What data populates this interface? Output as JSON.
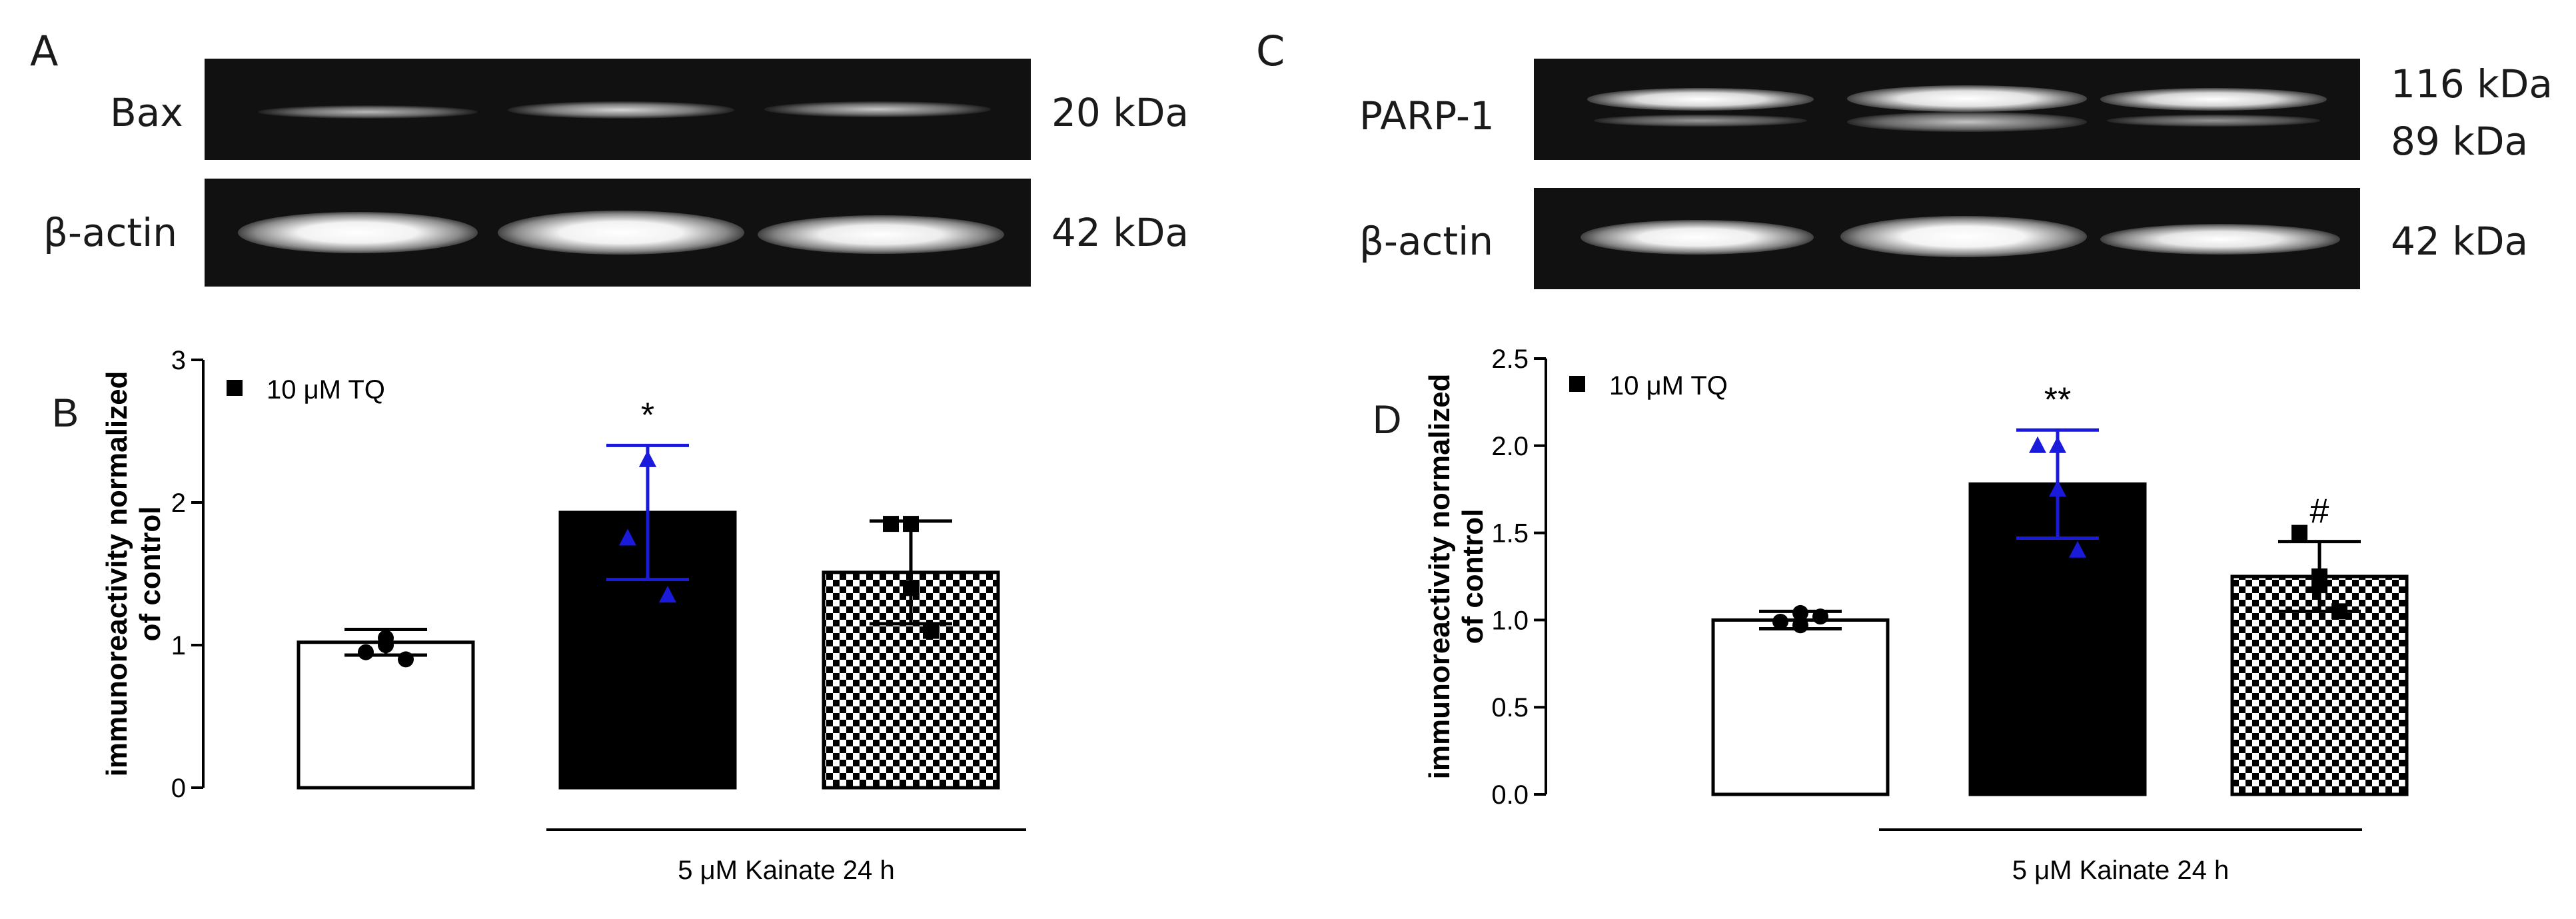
{
  "panels": {
    "A": {
      "label": "A",
      "rows": [
        {
          "name": "Bax",
          "kda": [
            "20 kDa"
          ]
        },
        {
          "name": "β-actin",
          "kda": [
            "42 kDa"
          ]
        }
      ]
    },
    "C": {
      "label": "C",
      "rows": [
        {
          "name": "PARP-1",
          "kda": [
            "116 kDa",
            "89 kDa"
          ]
        },
        {
          "name": "β-actin",
          "kda": [
            "42 kDa"
          ]
        }
      ]
    }
  },
  "chart_data": [
    {
      "panel": "B",
      "type": "bar",
      "ylabel": "immunoreactivity normalized\nof control",
      "ylim": [
        0,
        3
      ],
      "yticks": [
        "0",
        "1",
        "2",
        "3"
      ],
      "legend": "10 μM TQ",
      "xlabel": "5 μM Kainate 24 h",
      "categories": [
        "",
        "",
        ""
      ],
      "fills": [
        "white",
        "black",
        "checker"
      ],
      "values": [
        1.02,
        1.93,
        1.51
      ],
      "errors": [
        0.09,
        0.47,
        0.36
      ],
      "error_colors": [
        "#000000",
        "#1a1adb",
        "#000000"
      ],
      "points": [
        [
          0.95,
          1.05,
          0.9,
          1.0
        ],
        [
          1.75,
          2.3,
          1.35,
          2.3
        ],
        [
          1.85,
          1.4,
          1.1,
          1.85
        ]
      ],
      "point_shapes": [
        "circle",
        "triangle",
        "square"
      ],
      "point_colors": [
        "#000000",
        "#1a1adb",
        "#000000"
      ],
      "annotations": [
        "",
        "*",
        ""
      ]
    },
    {
      "panel": "D",
      "type": "bar",
      "ylabel": "immunoreactivity normalized\nof control",
      "ylim": [
        0,
        2.5
      ],
      "yticks": [
        "0.0",
        "0.5",
        "1.0",
        "1.5",
        "2.0",
        "2.5"
      ],
      "legend": "10 μM TQ",
      "xlabel": "5 μM Kainate 24 h",
      "categories": [
        "",
        "",
        ""
      ],
      "fills": [
        "white",
        "black",
        "checker"
      ],
      "values": [
        1.0,
        1.78,
        1.25
      ],
      "errors": [
        0.05,
        0.31,
        0.2
      ],
      "error_colors": [
        "#000000",
        "#1a1adb",
        "#000000"
      ],
      "points": [
        [
          0.99,
          0.97,
          1.02,
          1.04
        ],
        [
          2.0,
          1.75,
          1.4,
          2.0
        ],
        [
          1.5,
          1.2,
          1.05,
          1.25
        ]
      ],
      "point_shapes": [
        "circle",
        "triangle",
        "square"
      ],
      "point_colors": [
        "#000000",
        "#1a1adb",
        "#000000"
      ],
      "annotations": [
        "",
        "**",
        "#"
      ]
    }
  ]
}
